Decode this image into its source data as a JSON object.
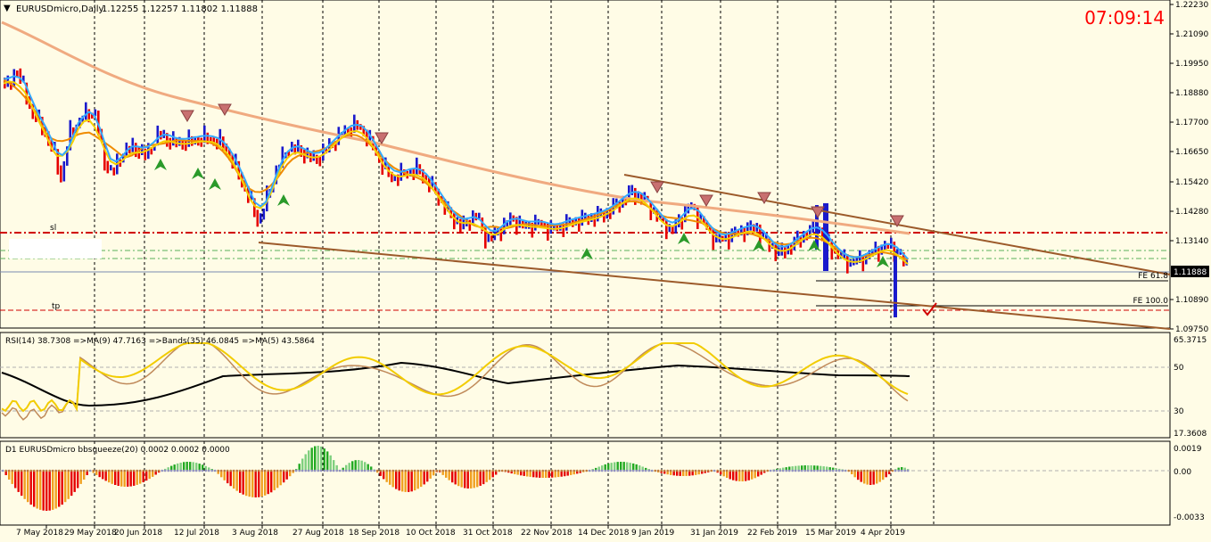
{
  "header": {
    "symbol_text": "EURUSDmicro,Daily",
    "ohlc_text": "1.12255 1.12257 1.11802 1.11888",
    "dropdown_glyph": "▼"
  },
  "clock": "07:09:14",
  "price_axis": {
    "labels": [
      "1.22230",
      "1.21090",
      "1.19950",
      "1.18880",
      "1.17700",
      "1.16650",
      "1.15420",
      "1.14280",
      "1.13140",
      "1.11888",
      "1.10890",
      "1.09750"
    ],
    "current_price": "1.11888"
  },
  "annotations": {
    "fe_61": "FE 61.8",
    "fe_100": "FE 100.0",
    "tp_label": "tp",
    "sl_label": "sl"
  },
  "rsi_panel": {
    "title": "RSI(14) 38.7308 =>MA(9) 47.7163 =>Bands(35) 46.0845 =>MA(5) 43.5864",
    "axis_labels": [
      "65.3715",
      "50",
      "30",
      "17.3608"
    ]
  },
  "squeeze_panel": {
    "title": "D1 EURUSDmicro bbsqueeze(20) 0.0002 0.0002 0.0000",
    "axis_labels": [
      "0.0019",
      "0.00",
      "-0.0033"
    ]
  },
  "time_axis": {
    "labels": [
      "7 May 2018",
      "29 May 2018",
      "20 Jun 2018",
      "12 Jul 2018",
      "3 Aug 2018",
      "27 Aug 2018",
      "18 Sep 2018",
      "10 Oct 2018",
      "31 Oct 2018",
      "22 Nov 2018",
      "14 Dec 2018",
      "9 Jan 2019",
      "31 Jan 2019",
      "22 Feb 2019",
      "15 Mar 2019",
      "4 Apr 2019"
    ]
  },
  "colors": {
    "background": "#fffce6",
    "bull_bar": "#1a1acc",
    "bear_bar": "#e60000",
    "ma_slow": "#f0aa80",
    "ma_mid": "#f08c00",
    "ma_fast": "#f5d000",
    "ma_cyan": "#33aaff",
    "trendline": "#9c5a2a",
    "rsi_line": "#f2cc00",
    "rsi_ma": "#c08a5a",
    "rsi_bands": "#000000",
    "level_red": "#d00000",
    "level_green": "#5ab05a",
    "clock": "#ff0000"
  }
}
